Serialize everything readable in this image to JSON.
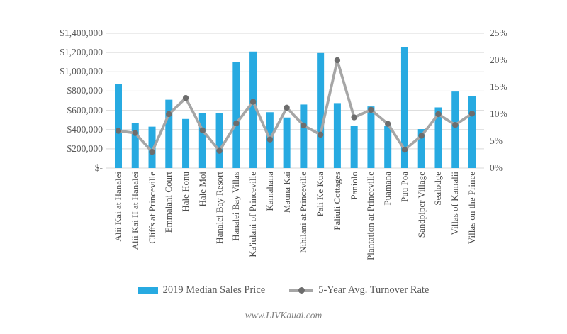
{
  "page": {
    "footer": "www.LIVKauai.com"
  },
  "chart_data": {
    "type": "bar",
    "subtype": "combo-bar-line",
    "grid": true,
    "legend_position": "bottom",
    "categories": [
      "Alii Kai at Hanalei",
      "Alii Kai II at Hanalei",
      "Cliffs at Princeville",
      "Emmalani Court",
      "Hale Honu",
      "Hale Moi",
      "Hanalei Bay Resort",
      "Hanalei Bay Villas",
      "Ka'iulani of Princeville",
      "Kamahana",
      "Mauna Kai",
      "Nihilani at Princeville",
      "Pali Ke Kua",
      "Paliuli Cottages",
      "Paniolo",
      "Plantation at Princeville",
      "Puamana",
      "Puu Poa",
      "Sandpiper Village",
      "Sealodge",
      "Villas of Kamalii",
      "Villas on the Prince"
    ],
    "series": [
      {
        "name": "2019 Median Sales Price",
        "type": "bar",
        "axis": "left",
        "color": "#27aae1",
        "values": [
          875000,
          465000,
          430000,
          710000,
          510000,
          570000,
          570000,
          1100000,
          1210000,
          580000,
          525000,
          660000,
          1195000,
          675000,
          435000,
          640000,
          435000,
          1260000,
          405000,
          630000,
          795000,
          745000
        ]
      },
      {
        "name": "5-Year Avg. Turnover Rate",
        "type": "line",
        "axis": "right",
        "color": "#a6a6a6",
        "marker_color": "#6d6d6d",
        "values": [
          6.9,
          6.5,
          3.0,
          10.0,
          13.0,
          7.0,
          3.2,
          8.3,
          12.3,
          5.3,
          11.2,
          7.9,
          6.2,
          20.0,
          9.4,
          10.8,
          8.2,
          3.4,
          6.0,
          10.0,
          8.0,
          10.1
        ]
      }
    ],
    "left_axis": {
      "min": 0,
      "max": 1400000,
      "tick_step": 200000,
      "ticks": [
        "$-",
        "$200,000",
        "$400,000",
        "$600,000",
        "$800,000",
        "$1,000,000",
        "$1,200,000",
        "$1,400,000"
      ]
    },
    "right_axis": {
      "min": 0,
      "max": 25,
      "tick_step": 5,
      "ticks": [
        "0%",
        "5%",
        "10%",
        "15%",
        "20%",
        "25%"
      ]
    },
    "gridline_color": "#d9d9d9"
  }
}
